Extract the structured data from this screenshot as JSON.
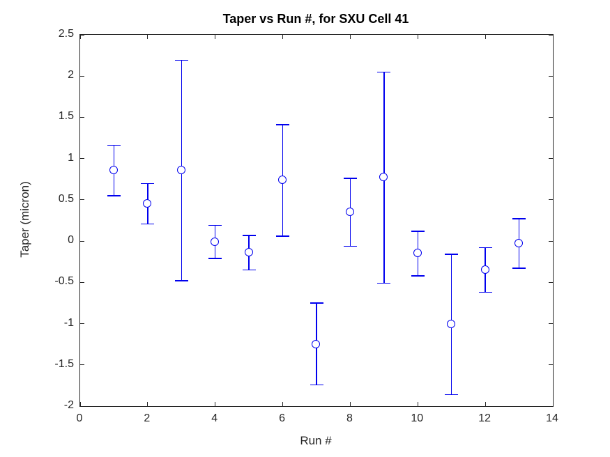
{
  "figure": {
    "title": "Taper vs Run #, for SXU Cell 41",
    "xlabel": "Run #",
    "ylabel": "Taper (micron)"
  },
  "chart_data": {
    "type": "scatter",
    "subtype": "errorbar",
    "title": "Taper vs Run #, for SXU Cell 41",
    "xlabel": "Run #",
    "ylabel": "Taper (micron)",
    "xlim": [
      0,
      14
    ],
    "ylim": [
      -2,
      2.5
    ],
    "x_ticks": [
      0,
      2,
      4,
      6,
      8,
      10,
      12,
      14
    ],
    "y_ticks": [
      -2,
      -1.5,
      -1,
      -0.5,
      0,
      0.5,
      1,
      1.5,
      2,
      2.5
    ],
    "grid": false,
    "legend": "none",
    "marker": "open-circle",
    "series_color": "#0000ee",
    "axis_color": "#262626",
    "points": [
      {
        "x": 1,
        "y": 0.86,
        "lo": 0.55,
        "hi": 1.16
      },
      {
        "x": 2,
        "y": 0.45,
        "lo": 0.21,
        "hi": 0.7
      },
      {
        "x": 3,
        "y": 0.86,
        "lo": -0.48,
        "hi": 2.19
      },
      {
        "x": 4,
        "y": -0.01,
        "lo": -0.21,
        "hi": 0.19
      },
      {
        "x": 5,
        "y": -0.14,
        "lo": -0.35,
        "hi": 0.07
      },
      {
        "x": 6,
        "y": 0.74,
        "lo": 0.06,
        "hi": 1.41
      },
      {
        "x": 7,
        "y": -1.25,
        "lo": -1.74,
        "hi": -0.75
      },
      {
        "x": 8,
        "y": 0.35,
        "lo": -0.06,
        "hi": 0.76
      },
      {
        "x": 9,
        "y": 0.77,
        "lo": -0.51,
        "hi": 2.05
      },
      {
        "x": 10,
        "y": -0.15,
        "lo": -0.42,
        "hi": 0.12
      },
      {
        "x": 11,
        "y": -1.01,
        "lo": -1.86,
        "hi": -0.16
      },
      {
        "x": 12,
        "y": -0.35,
        "lo": -0.62,
        "hi": -0.08
      },
      {
        "x": 13,
        "y": -0.03,
        "lo": -0.33,
        "hi": 0.27
      }
    ]
  }
}
